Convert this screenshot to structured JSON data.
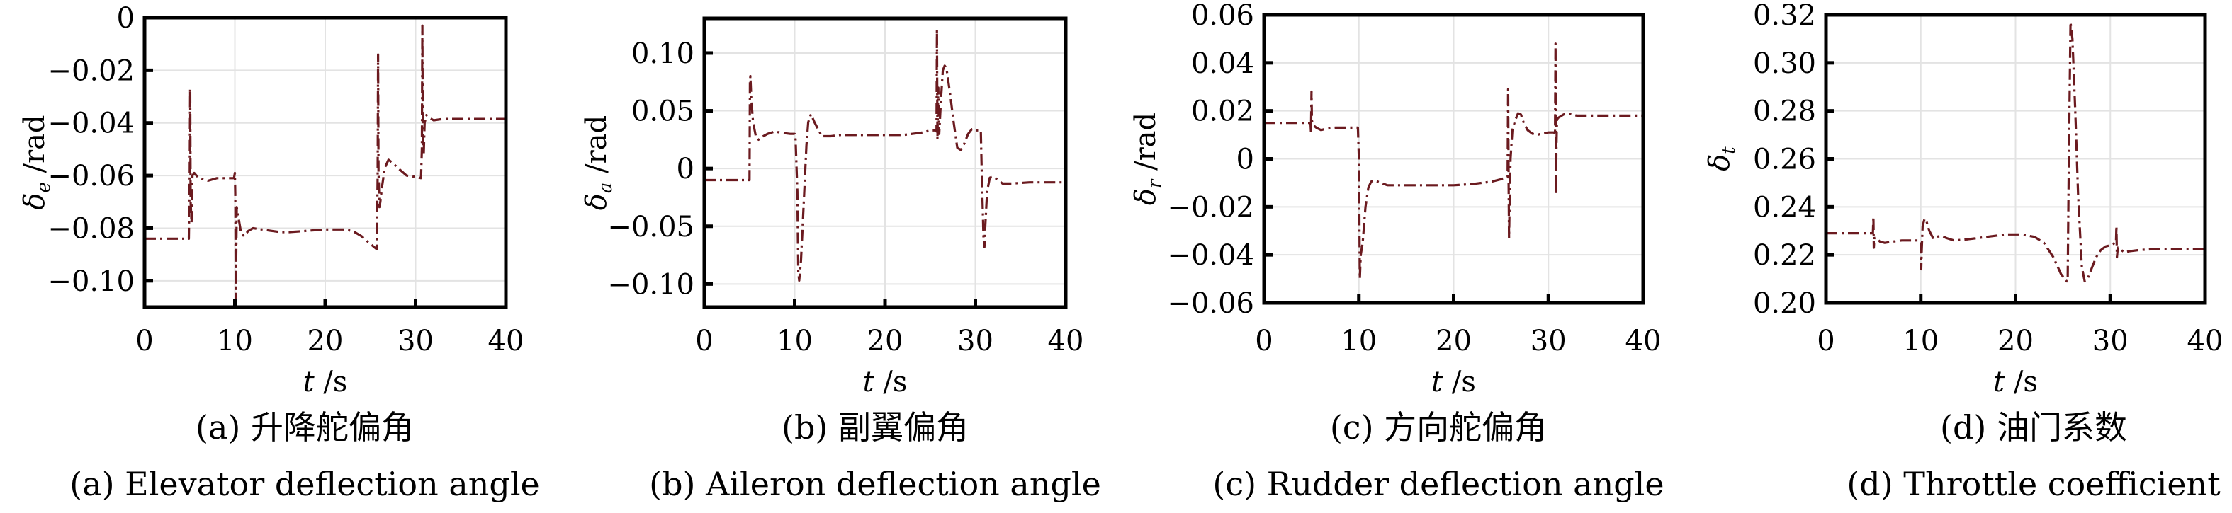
{
  "figure": {
    "line_color": "#6b1a1f",
    "grid_color": "#e3e3e3"
  },
  "chart_data": [
    {
      "id": "a",
      "type": "line",
      "title": "",
      "caption_cn": "(a) 升降舵偏角",
      "caption_en": "(a) Elevator deflection angle",
      "xlabel": "t /s",
      "xlabel_var": "t",
      "xlabel_unit": " /s",
      "ylabel": "δe /rad",
      "ylabel_var": "δ",
      "ylabel_sub": "e",
      "ylabel_unit": " /rad",
      "xlim": [
        0,
        40
      ],
      "ylim": [
        -0.11,
        0.0
      ],
      "xticks": [
        0,
        10,
        20,
        30,
        40
      ],
      "xtick_labels": [
        "0",
        "10",
        "20",
        "30",
        "40"
      ],
      "yticks": [
        0,
        -0.02,
        -0.04,
        -0.06,
        -0.08,
        -0.1
      ],
      "ytick_labels": [
        "0",
        "−0.02",
        "−0.04",
        "−0.06",
        "−0.08",
        "−0.10"
      ],
      "grid": true,
      "series": [
        {
          "name": "δe",
          "x": [
            0,
            4.9,
            5.0,
            5.05,
            5.1,
            5.2,
            5.3,
            5.5,
            6.0,
            7.0,
            8.0,
            9.9,
            10.0,
            10.05,
            10.1,
            10.2,
            10.4,
            10.7,
            11.0,
            11.5,
            12.0,
            13.0,
            14.0,
            15.0,
            16.0,
            18.0,
            20.0,
            22.0,
            23.0,
            24.0,
            25.0,
            25.7,
            25.8,
            25.85,
            25.9,
            26.0,
            26.1,
            26.3,
            26.6,
            27.0,
            27.4,
            28.0,
            29.0,
            30.0,
            30.6,
            30.7,
            30.75,
            30.8,
            30.9,
            31.0,
            31.2,
            31.5,
            32.0,
            33.0,
            35.0,
            38.0,
            40.0
          ],
          "y": [
            -0.084,
            -0.084,
            -0.06,
            -0.027,
            -0.07,
            -0.078,
            -0.06,
            -0.059,
            -0.061,
            -0.062,
            -0.061,
            -0.061,
            -0.059,
            -0.068,
            -0.107,
            -0.072,
            -0.076,
            -0.082,
            -0.083,
            -0.081,
            -0.08,
            -0.0805,
            -0.081,
            -0.0815,
            -0.0815,
            -0.081,
            -0.0805,
            -0.0805,
            -0.081,
            -0.083,
            -0.086,
            -0.088,
            -0.06,
            -0.014,
            -0.058,
            -0.072,
            -0.07,
            -0.064,
            -0.057,
            -0.054,
            -0.055,
            -0.057,
            -0.06,
            -0.0605,
            -0.061,
            -0.05,
            -0.003,
            -0.045,
            -0.052,
            -0.04,
            -0.037,
            -0.038,
            -0.039,
            -0.0385,
            -0.0385,
            -0.0385,
            -0.0385
          ]
        }
      ]
    },
    {
      "id": "b",
      "type": "line",
      "title": "",
      "caption_cn": "(b) 副翼偏角",
      "caption_en": "(b) Aileron deflection angle",
      "xlabel": "t /s",
      "xlabel_var": "t",
      "xlabel_unit": " /s",
      "ylabel": "δa /rad",
      "ylabel_var": "δ",
      "ylabel_sub": "a",
      "ylabel_unit": " /rad",
      "xlim": [
        0,
        40
      ],
      "ylim": [
        -0.12,
        0.13
      ],
      "xticks": [
        0,
        10,
        20,
        30,
        40
      ],
      "xtick_labels": [
        "0",
        "10",
        "20",
        "30",
        "40"
      ],
      "yticks": [
        0.1,
        0.05,
        0,
        -0.05,
        -0.1
      ],
      "ytick_labels": [
        "0.10",
        "0.05",
        "0",
        "−0.05",
        "−0.10"
      ],
      "grid": true,
      "series": [
        {
          "name": "δa",
          "x": [
            0,
            5.0,
            5.05,
            5.1,
            5.2,
            5.4,
            5.7,
            6.0,
            6.3,
            7.0,
            7.8,
            8.5,
            9.5,
            10.0,
            10.1,
            10.3,
            10.4,
            10.5,
            10.7,
            11.0,
            11.3,
            11.5,
            11.8,
            12.2,
            13.0,
            14.0,
            15.0,
            17.0,
            20.0,
            22.0,
            23.0,
            24.0,
            25.0,
            25.6,
            25.7,
            25.75,
            25.8,
            25.85,
            25.9,
            26.0,
            26.2,
            26.4,
            26.6,
            26.8,
            27.2,
            27.6,
            28.0,
            28.4,
            28.8,
            29.2,
            29.6,
            30.0,
            30.6,
            30.7,
            30.9,
            31.0,
            31.1,
            31.3,
            31.6,
            32.0,
            32.5,
            33.0,
            34.0,
            36.0,
            40.0
          ],
          "y": [
            -0.01,
            -0.01,
            0.075,
            0.08,
            0.06,
            0.04,
            0.028,
            0.025,
            0.027,
            0.03,
            0.032,
            0.031,
            0.03,
            0.03,
            0.025,
            -0.02,
            -0.09,
            -0.097,
            -0.08,
            -0.03,
            0.02,
            0.04,
            0.047,
            0.04,
            0.028,
            0.028,
            0.029,
            0.029,
            0.029,
            0.029,
            0.03,
            0.031,
            0.033,
            0.033,
            0.032,
            0.12,
            0.025,
            0.05,
            0.07,
            0.03,
            0.06,
            0.085,
            0.089,
            0.087,
            0.065,
            0.04,
            0.018,
            0.016,
            0.022,
            0.03,
            0.034,
            0.033,
            0.033,
            0.0,
            -0.06,
            -0.068,
            -0.05,
            -0.02,
            -0.008,
            -0.007,
            -0.01,
            -0.013,
            -0.013,
            -0.012,
            -0.012
          ]
        }
      ]
    },
    {
      "id": "c",
      "type": "line",
      "title": "",
      "caption_cn": "(c) 方向舵偏角",
      "caption_en": "(c) Rudder deflection angle",
      "xlabel": "t /s",
      "xlabel_var": "t",
      "xlabel_unit": " /s",
      "ylabel": "δr /rad",
      "ylabel_var": "δ",
      "ylabel_sub": "r",
      "ylabel_unit": " /rad",
      "xlim": [
        0,
        40
      ],
      "ylim": [
        -0.06,
        0.06
      ],
      "xticks": [
        0,
        10,
        20,
        30,
        40
      ],
      "xtick_labels": [
        "0",
        "10",
        "20",
        "30",
        "40"
      ],
      "yticks": [
        0.06,
        0.04,
        0.02,
        0,
        -0.02,
        -0.04,
        -0.06
      ],
      "ytick_labels": [
        "0.06",
        "0.04",
        "0.02",
        "0",
        "−0.02",
        "−0.04",
        "−0.06"
      ],
      "grid": true,
      "series": [
        {
          "name": "δr",
          "x": [
            0,
            4.9,
            4.95,
            5.0,
            5.05,
            5.1,
            5.2,
            5.5,
            6.0,
            6.5,
            7.5,
            8.5,
            9.9,
            10.0,
            10.05,
            10.1,
            10.2,
            10.4,
            10.7,
            11.0,
            11.3,
            11.6,
            12.0,
            13.0,
            15.0,
            18.0,
            20.0,
            22.0,
            24.0,
            25.0,
            25.6,
            25.7,
            25.75,
            25.8,
            25.85,
            25.9,
            26.0,
            26.2,
            26.5,
            26.8,
            27.1,
            27.4,
            27.8,
            28.3,
            28.8,
            29.3,
            30.0,
            30.6,
            30.7,
            30.75,
            30.8,
            30.85,
            30.9,
            31.0,
            31.2,
            31.6,
            32.0,
            32.5,
            33.0,
            35.0,
            40.0
          ],
          "y": [
            0.015,
            0.015,
            0.011,
            0.028,
            0.016,
            0.015,
            0.014,
            0.013,
            0.012,
            0.0125,
            0.013,
            0.013,
            0.013,
            0.0,
            -0.02,
            -0.05,
            -0.04,
            -0.035,
            -0.02,
            -0.012,
            -0.0095,
            -0.009,
            -0.0095,
            -0.011,
            -0.011,
            -0.011,
            -0.011,
            -0.0105,
            -0.0095,
            -0.0085,
            -0.0075,
            -0.0075,
            0.029,
            -0.01,
            -0.033,
            -0.02,
            0.0,
            0.012,
            0.016,
            0.019,
            0.0185,
            0.015,
            0.012,
            0.0105,
            0.01,
            0.0105,
            0.011,
            0.011,
            0.01,
            0.048,
            -0.015,
            0.005,
            0.016,
            0.017,
            0.0175,
            0.0185,
            0.019,
            0.0185,
            0.018,
            0.018,
            0.018
          ]
        }
      ]
    },
    {
      "id": "d",
      "type": "line",
      "title": "",
      "caption_cn": "(d) 油门系数",
      "caption_en": "(d) Throttle coefficient",
      "xlabel": "t /s",
      "xlabel_var": "t",
      "xlabel_unit": " /s",
      "ylabel": "δt",
      "ylabel_var": "δ",
      "ylabel_sub": "t",
      "ylabel_unit": "",
      "xlim": [
        0,
        40
      ],
      "ylim": [
        0.2,
        0.32
      ],
      "xticks": [
        0,
        10,
        20,
        30,
        40
      ],
      "xtick_labels": [
        "0",
        "10",
        "20",
        "30",
        "40"
      ],
      "yticks": [
        0.32,
        0.3,
        0.28,
        0.26,
        0.24,
        0.22,
        0.2
      ],
      "ytick_labels": [
        "0.32",
        "0.30",
        "0.28",
        "0.26",
        "0.24",
        "0.22",
        "0.20"
      ],
      "grid": true,
      "series": [
        {
          "name": "δt",
          "x": [
            0,
            4.9,
            4.95,
            5.0,
            5.05,
            5.1,
            5.3,
            5.7,
            6.2,
            7.0,
            8.0,
            9.9,
            10.0,
            10.05,
            10.1,
            10.2,
            10.4,
            10.6,
            10.9,
            11.3,
            11.7,
            12.2,
            12.7,
            13.5,
            15.0,
            17.0,
            19.0,
            20.5,
            22.0,
            23.0,
            24.0,
            24.8,
            25.4,
            25.5,
            25.6,
            25.8,
            26.0,
            26.3,
            26.6,
            27.0,
            27.3,
            27.6,
            28.0,
            28.5,
            29.0,
            29.5,
            30.0,
            30.5,
            30.6,
            30.65,
            30.7,
            30.8,
            31.0,
            31.5,
            32.0,
            33.0,
            35.0,
            40.0
          ],
          "y": [
            0.229,
            0.229,
            0.229,
            0.236,
            0.223,
            0.227,
            0.227,
            0.2255,
            0.225,
            0.2255,
            0.226,
            0.226,
            0.225,
            0.214,
            0.222,
            0.232,
            0.235,
            0.234,
            0.23,
            0.227,
            0.2275,
            0.228,
            0.227,
            0.226,
            0.2265,
            0.2275,
            0.2285,
            0.2285,
            0.2275,
            0.225,
            0.219,
            0.212,
            0.209,
            0.209,
            0.25,
            0.317,
            0.31,
            0.28,
            0.245,
            0.215,
            0.209,
            0.21,
            0.214,
            0.219,
            0.222,
            0.2235,
            0.224,
            0.225,
            0.225,
            0.232,
            0.219,
            0.223,
            0.2225,
            0.221,
            0.2215,
            0.222,
            0.2225,
            0.2225
          ]
        }
      ]
    }
  ]
}
